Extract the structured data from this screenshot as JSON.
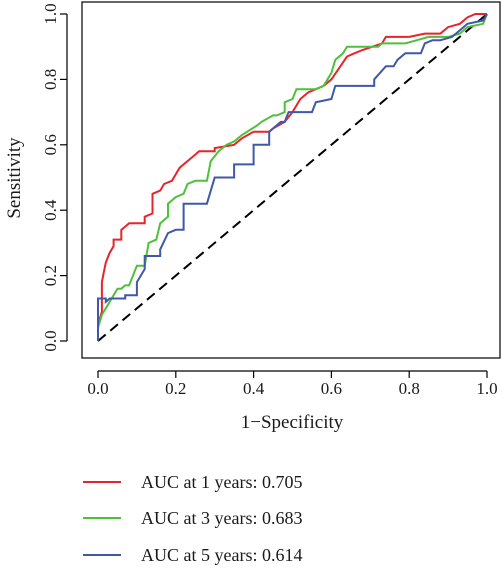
{
  "chart_data": {
    "type": "line",
    "xlabel": "1−Specificity",
    "ylabel": "Sensitivity",
    "xlim": [
      0,
      1
    ],
    "ylim": [
      0,
      1
    ],
    "x_ticks": [
      "0.0",
      "0.2",
      "0.4",
      "0.6",
      "0.8",
      "1.0"
    ],
    "y_ticks": [
      "0.0",
      "0.2",
      "0.4",
      "0.6",
      "0.8",
      "1.0"
    ],
    "grid": false,
    "legend_position": "bottom",
    "reference_line": {
      "from": [
        0,
        0
      ],
      "to": [
        1,
        1
      ],
      "style": "dashed",
      "color": "#000000"
    },
    "series": [
      {
        "name": "AUC at 1 years: 0.705",
        "color": "#e8232a",
        "points": [
          [
            0,
            0
          ],
          [
            0,
            0.05
          ],
          [
            0.01,
            0.09
          ],
          [
            0.01,
            0.14
          ],
          [
            0.01,
            0.18
          ],
          [
            0.015,
            0.21
          ],
          [
            0.02,
            0.24
          ],
          [
            0.03,
            0.27
          ],
          [
            0.04,
            0.29
          ],
          [
            0.04,
            0.31
          ],
          [
            0.06,
            0.31
          ],
          [
            0.06,
            0.34
          ],
          [
            0.07,
            0.35
          ],
          [
            0.08,
            0.36
          ],
          [
            0.12,
            0.36
          ],
          [
            0.12,
            0.38
          ],
          [
            0.14,
            0.39
          ],
          [
            0.14,
            0.45
          ],
          [
            0.16,
            0.46
          ],
          [
            0.17,
            0.48
          ],
          [
            0.19,
            0.49
          ],
          [
            0.2,
            0.51
          ],
          [
            0.21,
            0.53
          ],
          [
            0.22,
            0.54
          ],
          [
            0.23,
            0.55
          ],
          [
            0.24,
            0.56
          ],
          [
            0.25,
            0.57
          ],
          [
            0.26,
            0.58
          ],
          [
            0.3,
            0.58
          ],
          [
            0.3,
            0.59
          ],
          [
            0.35,
            0.6
          ],
          [
            0.37,
            0.62
          ],
          [
            0.4,
            0.64
          ],
          [
            0.44,
            0.64
          ],
          [
            0.45,
            0.65
          ],
          [
            0.48,
            0.67
          ],
          [
            0.5,
            0.7
          ],
          [
            0.52,
            0.74
          ],
          [
            0.54,
            0.76
          ],
          [
            0.56,
            0.77
          ],
          [
            0.58,
            0.78
          ],
          [
            0.6,
            0.8
          ],
          [
            0.64,
            0.87
          ],
          [
            0.66,
            0.88
          ],
          [
            0.68,
            0.89
          ],
          [
            0.73,
            0.91
          ],
          [
            0.74,
            0.93
          ],
          [
            0.8,
            0.93
          ],
          [
            0.84,
            0.94
          ],
          [
            0.88,
            0.94
          ],
          [
            0.9,
            0.96
          ],
          [
            0.93,
            0.97
          ],
          [
            0.95,
            0.99
          ],
          [
            0.97,
            1.0
          ],
          [
            1,
            1
          ]
        ]
      },
      {
        "name": "AUC at 3 years: 0.683",
        "color": "#4fbf3c",
        "points": [
          [
            0,
            0
          ],
          [
            0,
            0.04
          ],
          [
            0.01,
            0.08
          ],
          [
            0.02,
            0.1
          ],
          [
            0.03,
            0.12
          ],
          [
            0.04,
            0.14
          ],
          [
            0.05,
            0.16
          ],
          [
            0.06,
            0.16
          ],
          [
            0.07,
            0.17
          ],
          [
            0.08,
            0.17
          ],
          [
            0.1,
            0.23
          ],
          [
            0.12,
            0.23
          ],
          [
            0.13,
            0.3
          ],
          [
            0.15,
            0.31
          ],
          [
            0.16,
            0.36
          ],
          [
            0.18,
            0.38
          ],
          [
            0.18,
            0.42
          ],
          [
            0.2,
            0.44
          ],
          [
            0.22,
            0.45
          ],
          [
            0.23,
            0.48
          ],
          [
            0.25,
            0.49
          ],
          [
            0.28,
            0.49
          ],
          [
            0.29,
            0.55
          ],
          [
            0.31,
            0.58
          ],
          [
            0.33,
            0.6
          ],
          [
            0.35,
            0.61
          ],
          [
            0.37,
            0.63
          ],
          [
            0.41,
            0.66
          ],
          [
            0.42,
            0.67
          ],
          [
            0.45,
            0.69
          ],
          [
            0.46,
            0.69
          ],
          [
            0.48,
            0.7
          ],
          [
            0.48,
            0.73
          ],
          [
            0.5,
            0.74
          ],
          [
            0.51,
            0.77
          ],
          [
            0.56,
            0.77
          ],
          [
            0.58,
            0.78
          ],
          [
            0.6,
            0.82
          ],
          [
            0.61,
            0.86
          ],
          [
            0.63,
            0.88
          ],
          [
            0.64,
            0.9
          ],
          [
            0.72,
            0.9
          ],
          [
            0.73,
            0.91
          ],
          [
            0.79,
            0.91
          ],
          [
            0.82,
            0.92
          ],
          [
            0.85,
            0.93
          ],
          [
            0.9,
            0.93
          ],
          [
            0.93,
            0.94
          ],
          [
            0.95,
            0.96
          ],
          [
            0.99,
            0.97
          ],
          [
            1,
            1
          ]
        ]
      },
      {
        "name": "AUC at 5 years: 0.614",
        "color": "#3f58a8",
        "points": [
          [
            0,
            0
          ],
          [
            0,
            0.13
          ],
          [
            0.02,
            0.13
          ],
          [
            0.02,
            0.12
          ],
          [
            0.03,
            0.13
          ],
          [
            0.07,
            0.13
          ],
          [
            0.07,
            0.14
          ],
          [
            0.1,
            0.14
          ],
          [
            0.1,
            0.18
          ],
          [
            0.12,
            0.22
          ],
          [
            0.12,
            0.26
          ],
          [
            0.16,
            0.26
          ],
          [
            0.16,
            0.28
          ],
          [
            0.18,
            0.33
          ],
          [
            0.2,
            0.34
          ],
          [
            0.22,
            0.34
          ],
          [
            0.22,
            0.42
          ],
          [
            0.26,
            0.42
          ],
          [
            0.28,
            0.42
          ],
          [
            0.3,
            0.5
          ],
          [
            0.35,
            0.5
          ],
          [
            0.35,
            0.54
          ],
          [
            0.4,
            0.54
          ],
          [
            0.4,
            0.6
          ],
          [
            0.44,
            0.6
          ],
          [
            0.44,
            0.64
          ],
          [
            0.47,
            0.67
          ],
          [
            0.48,
            0.67
          ],
          [
            0.49,
            0.7
          ],
          [
            0.52,
            0.7
          ],
          [
            0.55,
            0.7
          ],
          [
            0.56,
            0.73
          ],
          [
            0.6,
            0.74
          ],
          [
            0.61,
            0.78
          ],
          [
            0.71,
            0.78
          ],
          [
            0.71,
            0.8
          ],
          [
            0.74,
            0.84
          ],
          [
            0.76,
            0.84
          ],
          [
            0.77,
            0.86
          ],
          [
            0.79,
            0.88
          ],
          [
            0.83,
            0.88
          ],
          [
            0.84,
            0.91
          ],
          [
            0.86,
            0.92
          ],
          [
            0.88,
            0.92
          ],
          [
            0.91,
            0.93
          ],
          [
            0.93,
            0.95
          ],
          [
            0.95,
            0.97
          ],
          [
            0.99,
            0.98
          ],
          [
            1,
            1
          ]
        ]
      }
    ]
  }
}
